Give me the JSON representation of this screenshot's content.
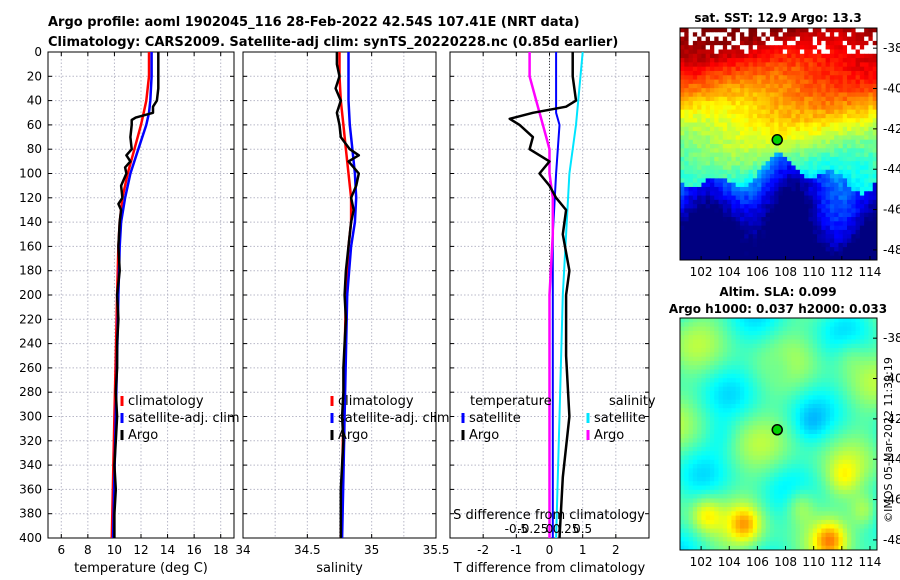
{
  "header": {
    "line1": "Argo profile: aoml 1902045_116 28-Feb-2022 42.54S 107.41E (NRT data)",
    "line2": "Climatology: CARS2009. Satellite-adj clim: synTS_20220228.nc (0.85d earlier)"
  },
  "colors": {
    "climatology": "#ff0000",
    "satellite": "#0000ff",
    "argo": "#000000",
    "sal_satellite": "#00e5ff",
    "sal_diff": "#ff00ff",
    "grid": "#b8b8c8"
  },
  "sst_map_title": "sat. SST: 12.9 Argo: 13.3",
  "sla_map_title1": "Altim. SLA: 0.099",
  "sla_map_title2": "Argo h1000: 0.037 h2000: 0.033",
  "copyright": "©IMOS 05-Mar-2022 11:39:19",
  "chart_data": [
    {
      "id": "temperature",
      "type": "line",
      "xlabel": "temperature (deg C)",
      "ylabel": "",
      "xlim": [
        5,
        19
      ],
      "ylim": [
        0,
        400
      ],
      "xticks": [
        6,
        8,
        10,
        12,
        14,
        16,
        18
      ],
      "yticks": [
        0,
        20,
        40,
        60,
        80,
        100,
        120,
        140,
        160,
        180,
        200,
        220,
        240,
        260,
        280,
        300,
        320,
        340,
        360,
        380,
        400
      ],
      "legend": [
        "climatology",
        "satellite-adj. clim",
        "Argo"
      ],
      "series": [
        {
          "name": "climatology",
          "depth": [
            0,
            20,
            40,
            50,
            60,
            80,
            100,
            120,
            140,
            160,
            200,
            250,
            300,
            350,
            400
          ],
          "values": [
            12.6,
            12.6,
            12.4,
            12.2,
            12.0,
            11.5,
            11.0,
            10.6,
            10.4,
            10.3,
            10.2,
            10.1,
            10.0,
            9.9,
            9.8
          ]
        },
        {
          "name": "satellite",
          "depth": [
            0,
            20,
            40,
            50,
            60,
            80,
            100,
            120,
            140,
            160,
            200,
            250,
            300,
            350,
            400
          ],
          "values": [
            12.8,
            12.8,
            12.7,
            12.6,
            12.4,
            11.8,
            11.2,
            10.8,
            10.5,
            10.4,
            10.3,
            10.2,
            10.1,
            10.0,
            9.9
          ]
        },
        {
          "name": "Argo",
          "depth": [
            0,
            10,
            20,
            30,
            40,
            45,
            50,
            54,
            56,
            60,
            70,
            80,
            85,
            90,
            95,
            100,
            110,
            120,
            125,
            130,
            140,
            160,
            180,
            200,
            220,
            240,
            260,
            280,
            300,
            320,
            340,
            360,
            380,
            400
          ],
          "values": [
            13.3,
            13.3,
            13.3,
            13.3,
            13.2,
            12.9,
            12.9,
            11.6,
            11.3,
            11.3,
            11.2,
            11.3,
            10.9,
            11.2,
            10.8,
            10.9,
            10.5,
            10.6,
            10.3,
            10.5,
            10.4,
            10.3,
            10.4,
            10.2,
            10.3,
            10.2,
            10.2,
            10.1,
            10.2,
            10.1,
            10.0,
            10.1,
            10.0,
            10.0
          ]
        }
      ]
    },
    {
      "id": "salinity",
      "type": "line",
      "xlabel": "salinity",
      "ylabel": "",
      "xlim": [
        34,
        35.5
      ],
      "ylim": [
        0,
        400
      ],
      "xticks": [
        34,
        34.5,
        35,
        35.5
      ],
      "legend": [
        "climatology",
        "satellite-adj. clim",
        "Argo"
      ],
      "series": [
        {
          "name": "climatology",
          "depth": [
            0,
            20,
            40,
            60,
            80,
            100,
            120,
            140,
            160,
            200,
            250,
            300,
            350,
            400
          ],
          "values": [
            34.75,
            34.75,
            34.76,
            34.78,
            34.8,
            34.82,
            34.84,
            34.84,
            34.82,
            34.8,
            34.79,
            34.78,
            34.77,
            34.76
          ]
        },
        {
          "name": "satellite",
          "depth": [
            0,
            20,
            40,
            60,
            80,
            100,
            120,
            140,
            160,
            200,
            250,
            300,
            350,
            400
          ],
          "values": [
            34.82,
            34.82,
            34.82,
            34.83,
            34.85,
            34.87,
            34.88,
            34.87,
            34.84,
            34.81,
            34.8,
            34.79,
            34.78,
            34.77
          ]
        },
        {
          "name": "Argo",
          "depth": [
            0,
            10,
            20,
            30,
            40,
            50,
            60,
            70,
            80,
            85,
            90,
            95,
            100,
            110,
            120,
            130,
            140,
            160,
            180,
            200,
            220,
            240,
            260,
            280,
            300,
            320,
            340,
            360,
            380,
            400
          ],
          "values": [
            34.73,
            34.73,
            34.75,
            34.72,
            34.76,
            34.73,
            34.75,
            34.76,
            34.83,
            34.9,
            34.82,
            34.86,
            34.9,
            34.88,
            34.84,
            34.86,
            34.84,
            34.82,
            34.8,
            34.79,
            34.8,
            34.79,
            34.78,
            34.78,
            34.77,
            34.78,
            34.77,
            34.76,
            34.76,
            34.76
          ]
        }
      ]
    },
    {
      "id": "difference",
      "type": "line",
      "xlabel": "T difference from climatology",
      "xlabel2": "S difference from climatology",
      "xlim": [
        -3,
        3
      ],
      "ylim": [
        0,
        400
      ],
      "xticks": [
        -2,
        -1,
        0,
        1,
        2
      ],
      "xticks2": [
        "-0.5",
        "-0.25",
        "0",
        "0.25",
        "0.5"
      ],
      "legend_t_title": "temperature",
      "legend_s_title": "salinity",
      "legend_t": [
        "satellite",
        "Argo"
      ],
      "legend_s": [
        "satellite",
        "Argo"
      ],
      "series": [
        {
          "name": "T satellite",
          "depth": [
            0,
            50,
            60,
            100,
            150,
            200,
            300,
            400
          ],
          "values": [
            0.2,
            0.2,
            0.3,
            0.2,
            0.1,
            0.1,
            0.1,
            0.1
          ]
        },
        {
          "name": "T Argo",
          "depth": [
            0,
            20,
            40,
            45,
            50,
            55,
            60,
            70,
            80,
            90,
            100,
            110,
            120,
            130,
            150,
            180,
            200,
            250,
            300,
            350,
            400
          ],
          "values": [
            0.7,
            0.7,
            0.8,
            0.5,
            -0.5,
            -1.2,
            -0.9,
            -0.5,
            -0.6,
            0.0,
            -0.3,
            0.0,
            0.2,
            0.5,
            0.4,
            0.6,
            0.5,
            0.5,
            0.6,
            0.4,
            0.3
          ]
        },
        {
          "name": "S satellite",
          "depth": [
            0,
            60,
            100,
            150,
            200,
            300,
            400
          ],
          "values": [
            0.5,
            0.4,
            0.3,
            0.25,
            0.2,
            0.15,
            0.1
          ]
        },
        {
          "name": "S Argo",
          "depth": [
            0,
            20,
            40,
            60,
            80,
            100,
            120,
            150,
            200,
            300,
            400
          ],
          "values": [
            -0.3,
            -0.3,
            -0.2,
            -0.1,
            0.0,
            0.0,
            0.05,
            0.05,
            0.0,
            0.0,
            0.0
          ]
        }
      ]
    },
    {
      "id": "sst_map",
      "type": "heatmap",
      "title": "sat. SST: 12.9 Argo: 13.3",
      "xticks": [
        102,
        104,
        106,
        108,
        110,
        112,
        114
      ],
      "yticks": [
        -38,
        -40,
        -42,
        -44,
        -46,
        -48
      ],
      "argo_position": [
        107.41,
        -42.54
      ]
    },
    {
      "id": "sla_map",
      "type": "heatmap",
      "title": "Altim. SLA: 0.099",
      "xticks": [
        102,
        104,
        106,
        108,
        110,
        112,
        114
      ],
      "yticks": [
        -38,
        -40,
        -42,
        -44,
        -46,
        -48
      ],
      "argo_position": [
        107.41,
        -42.54
      ]
    }
  ]
}
